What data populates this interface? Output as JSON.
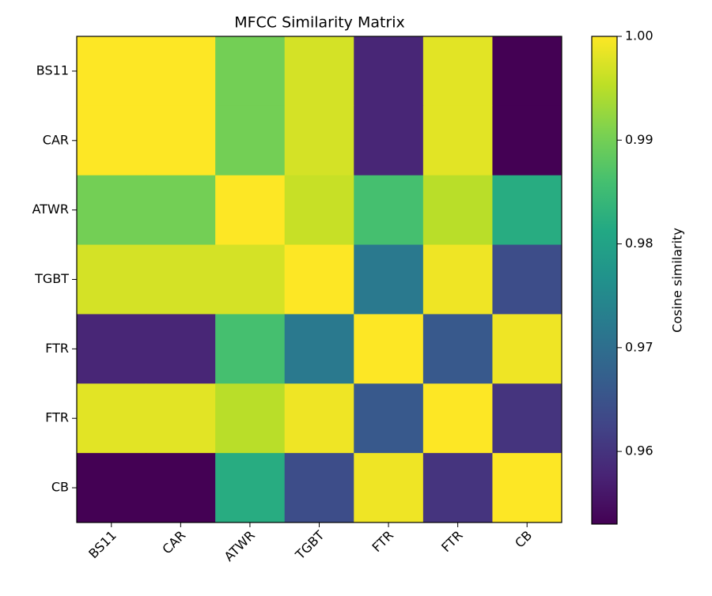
{
  "chart_data": {
    "type": "heatmap",
    "title": "MFCC Similarity Matrix",
    "x_categories": [
      "BS11",
      "CAR",
      "ATWR",
      "TGBT",
      "FTR",
      "FTR",
      "CB"
    ],
    "y_categories": [
      "BS11",
      "CAR",
      "ATWR",
      "TGBT",
      "FTR",
      "FTR",
      "CB"
    ],
    "values": [
      [
        1.0,
        1.0,
        0.99,
        0.997,
        0.958,
        0.998,
        0.953
      ],
      [
        1.0,
        1.0,
        0.99,
        0.997,
        0.958,
        0.998,
        0.953
      ],
      [
        0.99,
        0.99,
        1.0,
        0.996,
        0.986,
        0.995,
        0.982
      ],
      [
        0.997,
        0.997,
        0.997,
        1.0,
        0.972,
        0.999,
        0.964
      ],
      [
        0.958,
        0.958,
        0.986,
        0.972,
        1.0,
        0.966,
        0.999
      ],
      [
        0.998,
        0.998,
        0.995,
        0.999,
        0.966,
        1.0,
        0.96
      ],
      [
        0.953,
        0.953,
        0.982,
        0.964,
        0.999,
        0.96,
        1.0
      ]
    ],
    "colormap": "viridis",
    "zlim": [
      0.953,
      1.0
    ],
    "zticks": [
      {
        "value": 1.0,
        "label": "1.00"
      },
      0.99,
      0.98,
      0.97,
      0.96
    ],
    "colorbar_label": "Cosine similarity"
  }
}
